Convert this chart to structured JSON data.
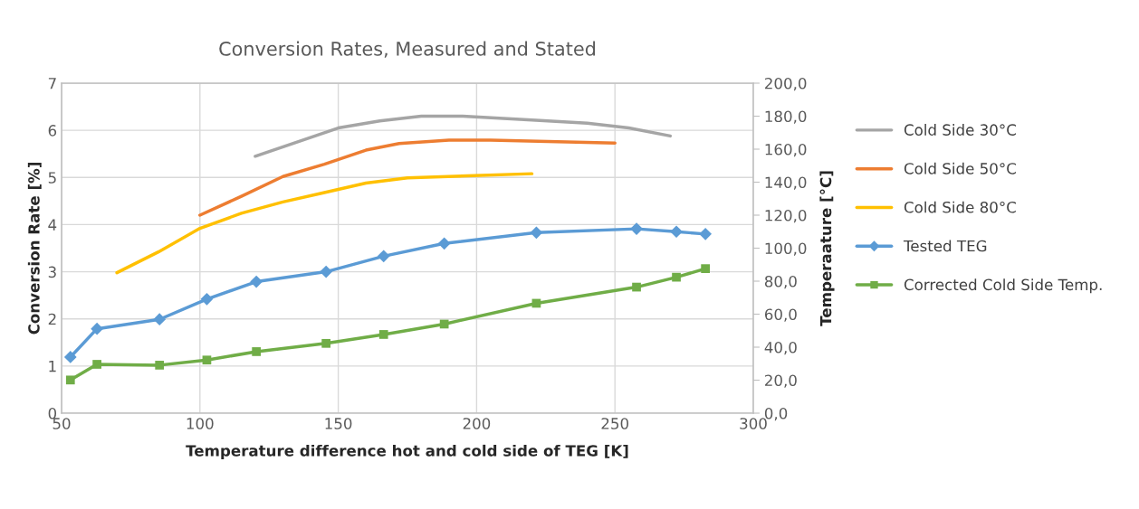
{
  "chart_data": {
    "type": "line",
    "title": "Conversion Rates, Measured and Stated",
    "xlabel": "Temperature difference hot and cold side of TEG [K]",
    "ylabel": "Conversion Rate [%]",
    "y2label": "Temperaature [°C]",
    "xlim": [
      50,
      300
    ],
    "xticks": [
      50,
      100,
      150,
      200,
      250,
      300
    ],
    "ylim": [
      0,
      7
    ],
    "yticks": [
      0,
      1,
      2,
      3,
      4,
      5,
      6,
      7
    ],
    "y2lim": [
      0,
      200
    ],
    "y2ticks": [
      {
        "value": 0,
        "label": "0,0"
      },
      {
        "value": 20,
        "label": "20,0"
      },
      {
        "value": 40,
        "label": "40,0"
      },
      {
        "value": 60,
        "label": "60,0"
      },
      {
        "value": 80,
        "label": "80,0"
      },
      {
        "value": 100,
        "label": "100,0"
      },
      {
        "value": 120,
        "label": "120,0"
      },
      {
        "value": 140,
        "label": "140,0"
      },
      {
        "value": 160,
        "label": "160,0"
      },
      {
        "value": 180,
        "label": "180,0"
      },
      {
        "value": 200,
        "label": "200,0"
      }
    ],
    "grid": true,
    "legend": "right",
    "series": [
      {
        "name": "Cold Side 30°C",
        "color": "#a5a5a5",
        "marker": "none",
        "x": [
          120,
          150,
          165,
          180,
          195,
          220,
          240,
          255,
          270
        ],
        "values": [
          5.45,
          6.05,
          6.2,
          6.3,
          6.3,
          6.22,
          6.15,
          6.05,
          5.88
        ]
      },
      {
        "name": "Cold Side 50°C",
        "color": "#ed7d31",
        "marker": "none",
        "x": [
          100,
          115,
          130,
          145,
          160,
          172,
          190,
          205,
          250
        ],
        "values": [
          4.2,
          4.6,
          5.02,
          5.28,
          5.58,
          5.72,
          5.79,
          5.79,
          5.73
        ]
      },
      {
        "name": "Cold Side 80°C",
        "color": "#ffc000",
        "marker": "none",
        "x": [
          70,
          85,
          100,
          115,
          130,
          145,
          160,
          175,
          220
        ],
        "values": [
          2.98,
          3.42,
          3.92,
          4.24,
          4.48,
          4.68,
          4.88,
          4.99,
          5.08
        ]
      },
      {
        "name": "Tested TEG",
        "color": "#5b9bd5",
        "marker": "diamond",
        "x": [
          53.2,
          62.8,
          85.4,
          102.5,
          120.4,
          145.6,
          166.4,
          188.3,
          221.6,
          257.8,
          272.2,
          282.7
        ],
        "values": [
          1.19,
          1.79,
          1.99,
          2.42,
          2.79,
          3.0,
          3.33,
          3.6,
          3.83,
          3.91,
          3.85,
          3.8
        ]
      },
      {
        "name": "Corrected Cold Side Temp.",
        "color": "#70ad47",
        "marker": "square",
        "axis": "y2",
        "x": [
          53.2,
          62.8,
          85.4,
          102.5,
          120.4,
          145.6,
          166.4,
          188.3,
          221.6,
          257.8,
          272.2,
          282.7
        ],
        "values": [
          20.1,
          29.6,
          29.1,
          32.2,
          37.3,
          42.3,
          47.7,
          54.0,
          66.6,
          76.4,
          82.4,
          87.6
        ]
      }
    ]
  }
}
